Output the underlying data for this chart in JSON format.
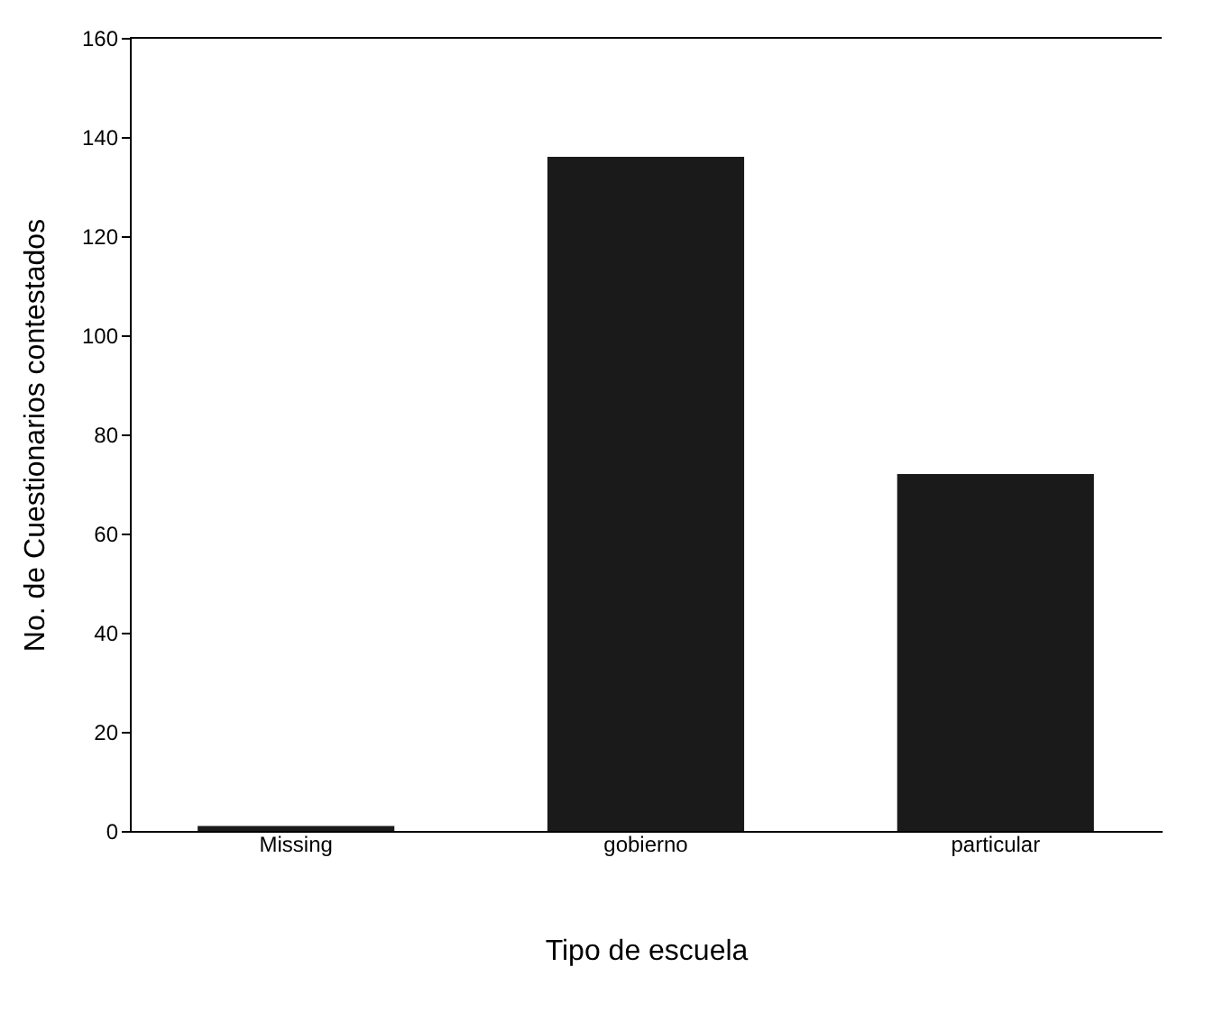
{
  "chart_data": {
    "type": "bar",
    "xlabel": "Tipo de escuela",
    "ylabel": "No. de Cuestionarios contestados",
    "categories": [
      "Missing",
      "gobierno",
      "particular"
    ],
    "values": [
      1,
      136,
      72
    ],
    "color": "#1a1a1a",
    "ylim": [
      0,
      160
    ],
    "yticks": [
      0,
      20,
      40,
      60,
      80,
      100,
      120,
      140,
      160
    ],
    "grid": false
  }
}
